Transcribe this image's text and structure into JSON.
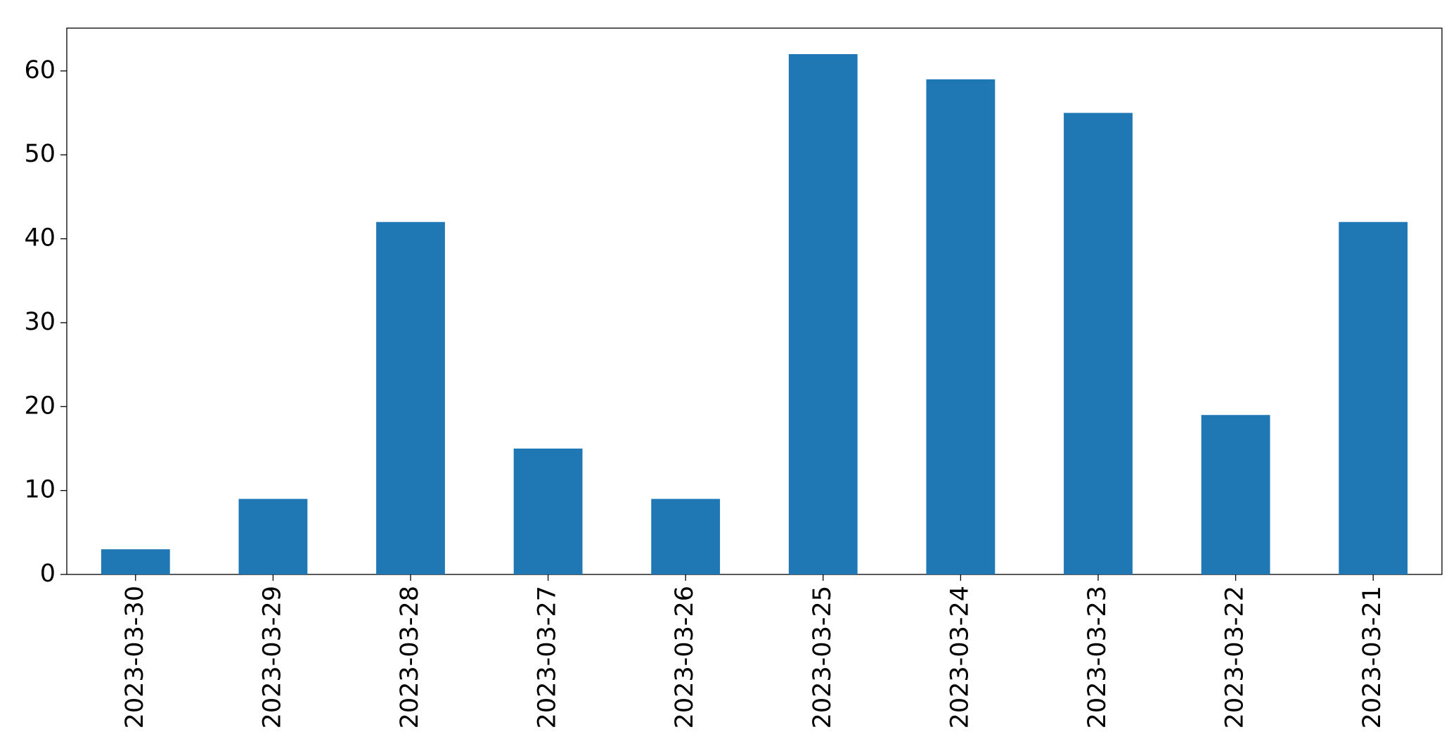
{
  "chart_data": {
    "type": "bar",
    "categories": [
      "2023-03-30",
      "2023-03-29",
      "2023-03-28",
      "2023-03-27",
      "2023-03-26",
      "2023-03-25",
      "2023-03-24",
      "2023-03-23",
      "2023-03-22",
      "2023-03-21"
    ],
    "values": [
      3,
      9,
      42,
      15,
      9,
      62,
      59,
      55,
      19,
      42
    ],
    "color": "#1f77b4",
    "ylim": [
      0,
      65.1
    ],
    "yticks": [
      0,
      10,
      20,
      30,
      40,
      50,
      60
    ],
    "grid": false
  }
}
